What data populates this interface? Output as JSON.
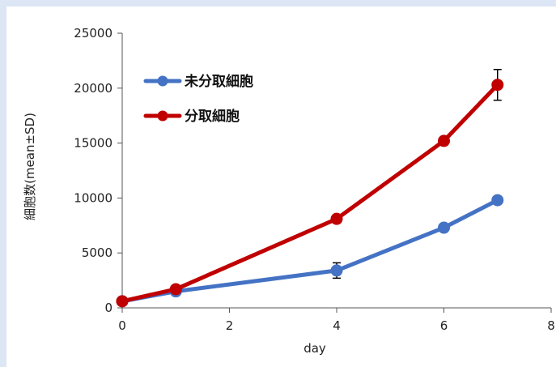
{
  "chart_data": {
    "type": "line",
    "xlabel": "day",
    "ylabel": "細胞数(mean±SD)",
    "xlim": [
      0,
      8
    ],
    "ylim": [
      0,
      25000
    ],
    "xticks": [
      0,
      2,
      4,
      6,
      8
    ],
    "yticks": [
      0,
      5000,
      10000,
      15000,
      20000,
      25000
    ],
    "grid": false,
    "legend_position": "top-left",
    "series": [
      {
        "name": "未分取細胞",
        "color": "#4472c4",
        "x": [
          0,
          1,
          4,
          6,
          7
        ],
        "y": [
          600,
          1500,
          3400,
          7300,
          9800
        ],
        "err": [
          0,
          0,
          700,
          0,
          0
        ]
      },
      {
        "name": "分取細胞",
        "color": "#c00000",
        "x": [
          0,
          1,
          4,
          6,
          7
        ],
        "y": [
          600,
          1700,
          8100,
          15200,
          20300
        ],
        "err": [
          0,
          0,
          0,
          0,
          1400
        ]
      }
    ]
  }
}
